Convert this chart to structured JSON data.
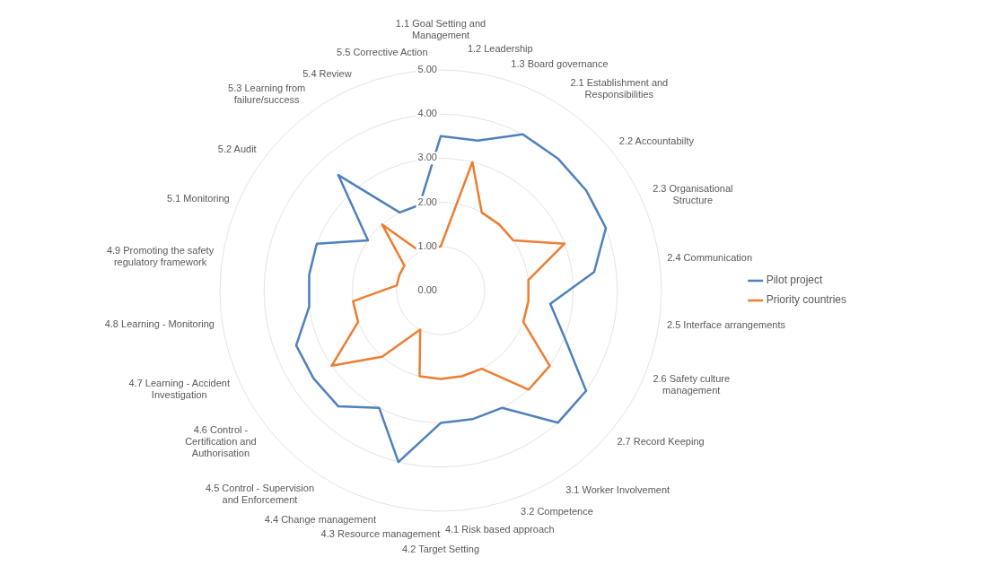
{
  "chart_data": {
    "type": "radar",
    "categories": [
      "1.1 Goal Setting and Management",
      "1.2 Leadership",
      "1.3 Board governance",
      "2.1 Establishment and Responsibilities",
      "2.2 Accountabilty",
      "2.3 Organisational Structure",
      "2.4 Communication",
      "2.5 Interface arrangements",
      "2.6 Safety culture management",
      "2.7 Record Keeping",
      "3.1 Worker Involvement",
      "3.2 Competence",
      "4.1 Risk based approach",
      "4.2 Target Setting",
      "4.3 Resource management",
      "4.4 Change management",
      "4.5 Control - Supervision and Enforcement",
      "4.6 Control - Certification and Authorisation",
      "4.7 Learning - Accident Investigation",
      "4.8 Learning - Monitoring",
      "4.9 Promoting the safety regulatory framework",
      "5.1 Monitoring",
      "5.2 Audit",
      "5.3 Learning from failure/success",
      "5.4 Review",
      "5.5 Corrective Action"
    ],
    "series": [
      {
        "name": "Pilot project",
        "color": "#4f81bd",
        "values": [
          3.5,
          3.5,
          4,
          4,
          4,
          4,
          3.5,
          2.5,
          3,
          4,
          4,
          3,
          3,
          3,
          4,
          3,
          3.5,
          3.5,
          3.5,
          3,
          3,
          3,
          2,
          3.5,
          2,
          2
        ]
      },
      {
        "name": "Priority countries",
        "color": "#ed7d31",
        "values": [
          1,
          3,
          2,
          2,
          2,
          3,
          2,
          2,
          2,
          3,
          3,
          2,
          2,
          2,
          2,
          1,
          2,
          3,
          2,
          2,
          1,
          1,
          1,
          2,
          1,
          1
        ]
      }
    ],
    "ylim": [
      0,
      5
    ],
    "yticks": [
      {
        "value": 0,
        "label": "0.00"
      },
      {
        "value": 1,
        "label": "1.00"
      },
      {
        "value": 2,
        "label": "2.00"
      },
      {
        "value": 3,
        "label": "3.00"
      },
      {
        "value": 4,
        "label": "4.00"
      },
      {
        "value": 5,
        "label": "5.00"
      }
    ],
    "grid": true,
    "legend": "right",
    "marker": "none"
  }
}
